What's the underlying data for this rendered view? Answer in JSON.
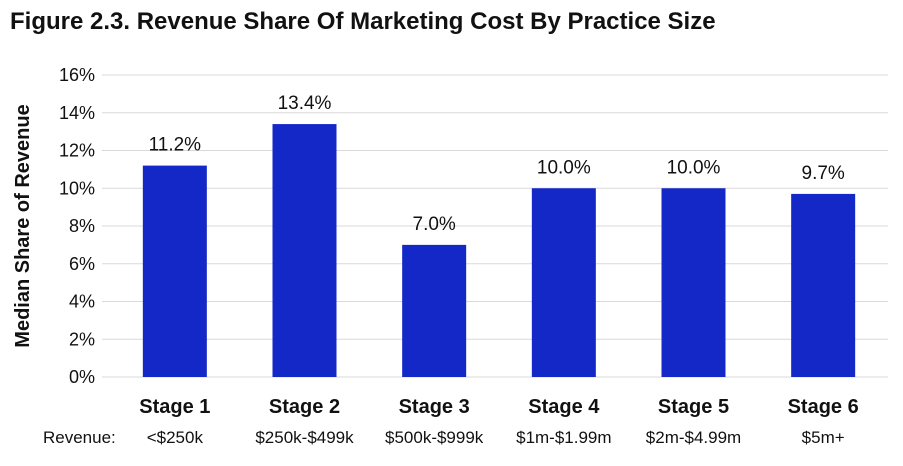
{
  "title": "Figure 2.3. Revenue Share Of Marketing Cost By Practice Size",
  "chart_data": {
    "type": "bar",
    "title": "Figure 2.3. Revenue Share Of Marketing Cost By Practice Size",
    "ylabel": "Median Share of Revenue",
    "xlabel": "",
    "categories": [
      "Stage 1",
      "Stage 2",
      "Stage 3",
      "Stage 4",
      "Stage 5",
      "Stage 6"
    ],
    "revenue_row_label": "Revenue:",
    "revenue_ranges": [
      "<$250k",
      "$250k-$499k",
      "$500k-$999k",
      "$1m-$1.99m",
      "$2m-$4.99m",
      "$5m+"
    ],
    "values": [
      11.2,
      13.4,
      7.0,
      10.0,
      10.0,
      9.7
    ],
    "value_labels": [
      "11.2%",
      "13.4%",
      "7.0%",
      "10.0%",
      "10.0%",
      "9.7%"
    ],
    "ylim": [
      0,
      16
    ],
    "yticks": [
      0,
      2,
      4,
      6,
      8,
      10,
      12,
      14,
      16
    ],
    "ytick_labels": [
      "0%",
      "2%",
      "4%",
      "6%",
      "8%",
      "10%",
      "12%",
      "14%",
      "16%"
    ],
    "grid": true,
    "bar_color": "#1428c8",
    "grid_color": "#d9d9d9"
  }
}
